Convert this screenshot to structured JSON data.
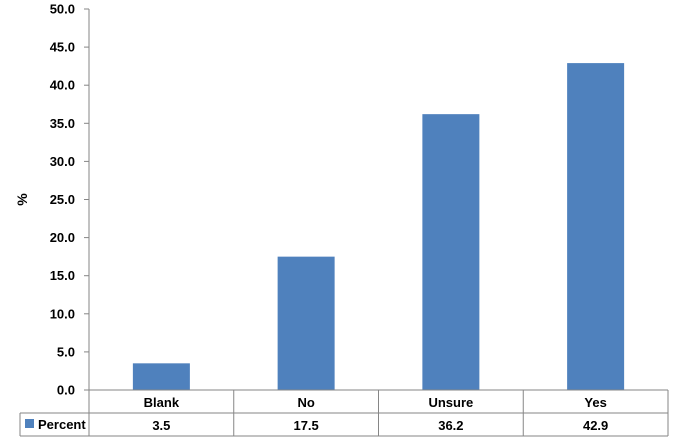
{
  "chart_data": {
    "type": "bar",
    "title": "",
    "xlabel": "",
    "ylabel": "%",
    "ylim": [
      0,
      50
    ],
    "y_ticks": [
      "0.0",
      "5.0",
      "10.0",
      "15.0",
      "20.0",
      "25.0",
      "30.0",
      "35.0",
      "40.0",
      "45.0",
      "50.0"
    ],
    "categories": [
      "Blank",
      "No",
      "Unsure",
      "Yes"
    ],
    "series": [
      {
        "name": "Percent",
        "values": [
          3.5,
          17.5,
          36.2,
          42.9
        ],
        "value_labels": [
          "3.5",
          "17.5",
          "36.2",
          "42.9"
        ],
        "color": "#4F81BD"
      }
    ],
    "data_table": true,
    "grid": false
  }
}
